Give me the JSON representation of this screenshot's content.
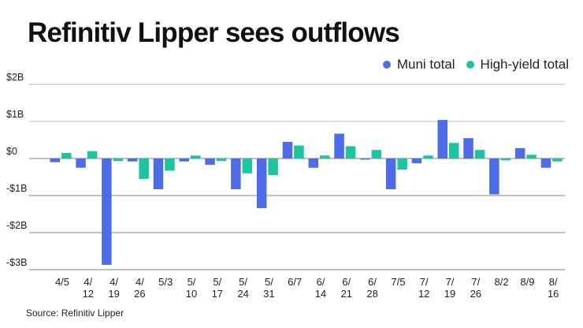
{
  "chart_data": {
    "type": "bar",
    "title": "Refinitiv Lipper sees outflows",
    "source": "Source: Refinitiv Lipper",
    "xlabel": "",
    "ylabel": "",
    "ylim": [
      -3,
      2
    ],
    "yticks": [
      {
        "value": 2,
        "label": "$2B"
      },
      {
        "value": 1,
        "label": "$1B"
      },
      {
        "value": 0,
        "label": "$0"
      },
      {
        "value": -1,
        "label": "-$1B"
      },
      {
        "value": -2,
        "label": "-$2B"
      },
      {
        "value": -3,
        "label": "-$3B"
      }
    ],
    "grid": true,
    "legend_position": "top-right",
    "categories": [
      [
        "4/5"
      ],
      [
        "4/",
        "12"
      ],
      [
        "4/",
        "19"
      ],
      [
        "4/",
        "26"
      ],
      [
        "5/3"
      ],
      [
        "5/",
        "10"
      ],
      [
        "5/",
        "17"
      ],
      [
        "5/",
        "24"
      ],
      [
        "5/",
        "31"
      ],
      [
        "6/7"
      ],
      [
        "6/",
        "14"
      ],
      [
        "6/",
        "21"
      ],
      [
        "6/",
        "28"
      ],
      [
        "7/5"
      ],
      [
        "7/",
        "12"
      ],
      [
        "7/",
        "19"
      ],
      [
        "7/",
        "26"
      ],
      [
        "8/2"
      ],
      [
        "8/9"
      ],
      [
        "8/",
        "16"
      ]
    ],
    "series": [
      {
        "name": "Muni total",
        "color": "#4f6ce8",
        "values": [
          -0.1,
          -0.25,
          -2.87,
          -0.08,
          -0.83,
          -0.08,
          -0.17,
          -0.83,
          -1.34,
          0.45,
          -0.25,
          0.67,
          -0.03,
          -0.83,
          -0.13,
          1.04,
          0.55,
          -0.97,
          0.28,
          -0.25
        ]
      },
      {
        "name": "High-yield total",
        "color": "#1dc4a0",
        "values": [
          0.15,
          0.2,
          -0.07,
          -0.55,
          -0.33,
          0.08,
          -0.07,
          -0.4,
          -0.45,
          0.35,
          0.08,
          0.33,
          0.23,
          -0.3,
          0.08,
          0.42,
          0.23,
          -0.05,
          0.1,
          -0.08
        ]
      }
    ],
    "unit": "billions USD"
  }
}
